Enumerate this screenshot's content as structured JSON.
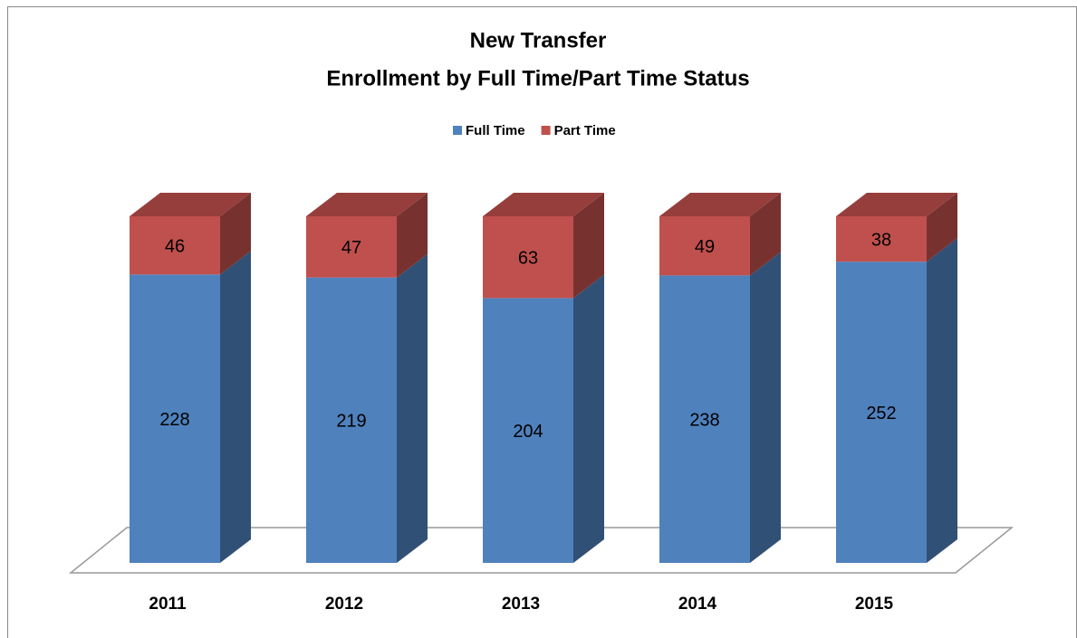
{
  "chart_data": {
    "type": "bar",
    "stacked": "percent",
    "title": "New Transfer",
    "subtitle": "Enrollment by Full Time/Part Time Status",
    "categories": [
      "2011",
      "2012",
      "2013",
      "2014",
      "2015"
    ],
    "series": [
      {
        "name": "Full Time",
        "color": "#4f81bd",
        "values": [
          228,
          219,
          204,
          238,
          252
        ]
      },
      {
        "name": "Part Time",
        "color": "#c0504d",
        "values": [
          46,
          47,
          63,
          49,
          38
        ]
      }
    ],
    "legend": "top"
  }
}
